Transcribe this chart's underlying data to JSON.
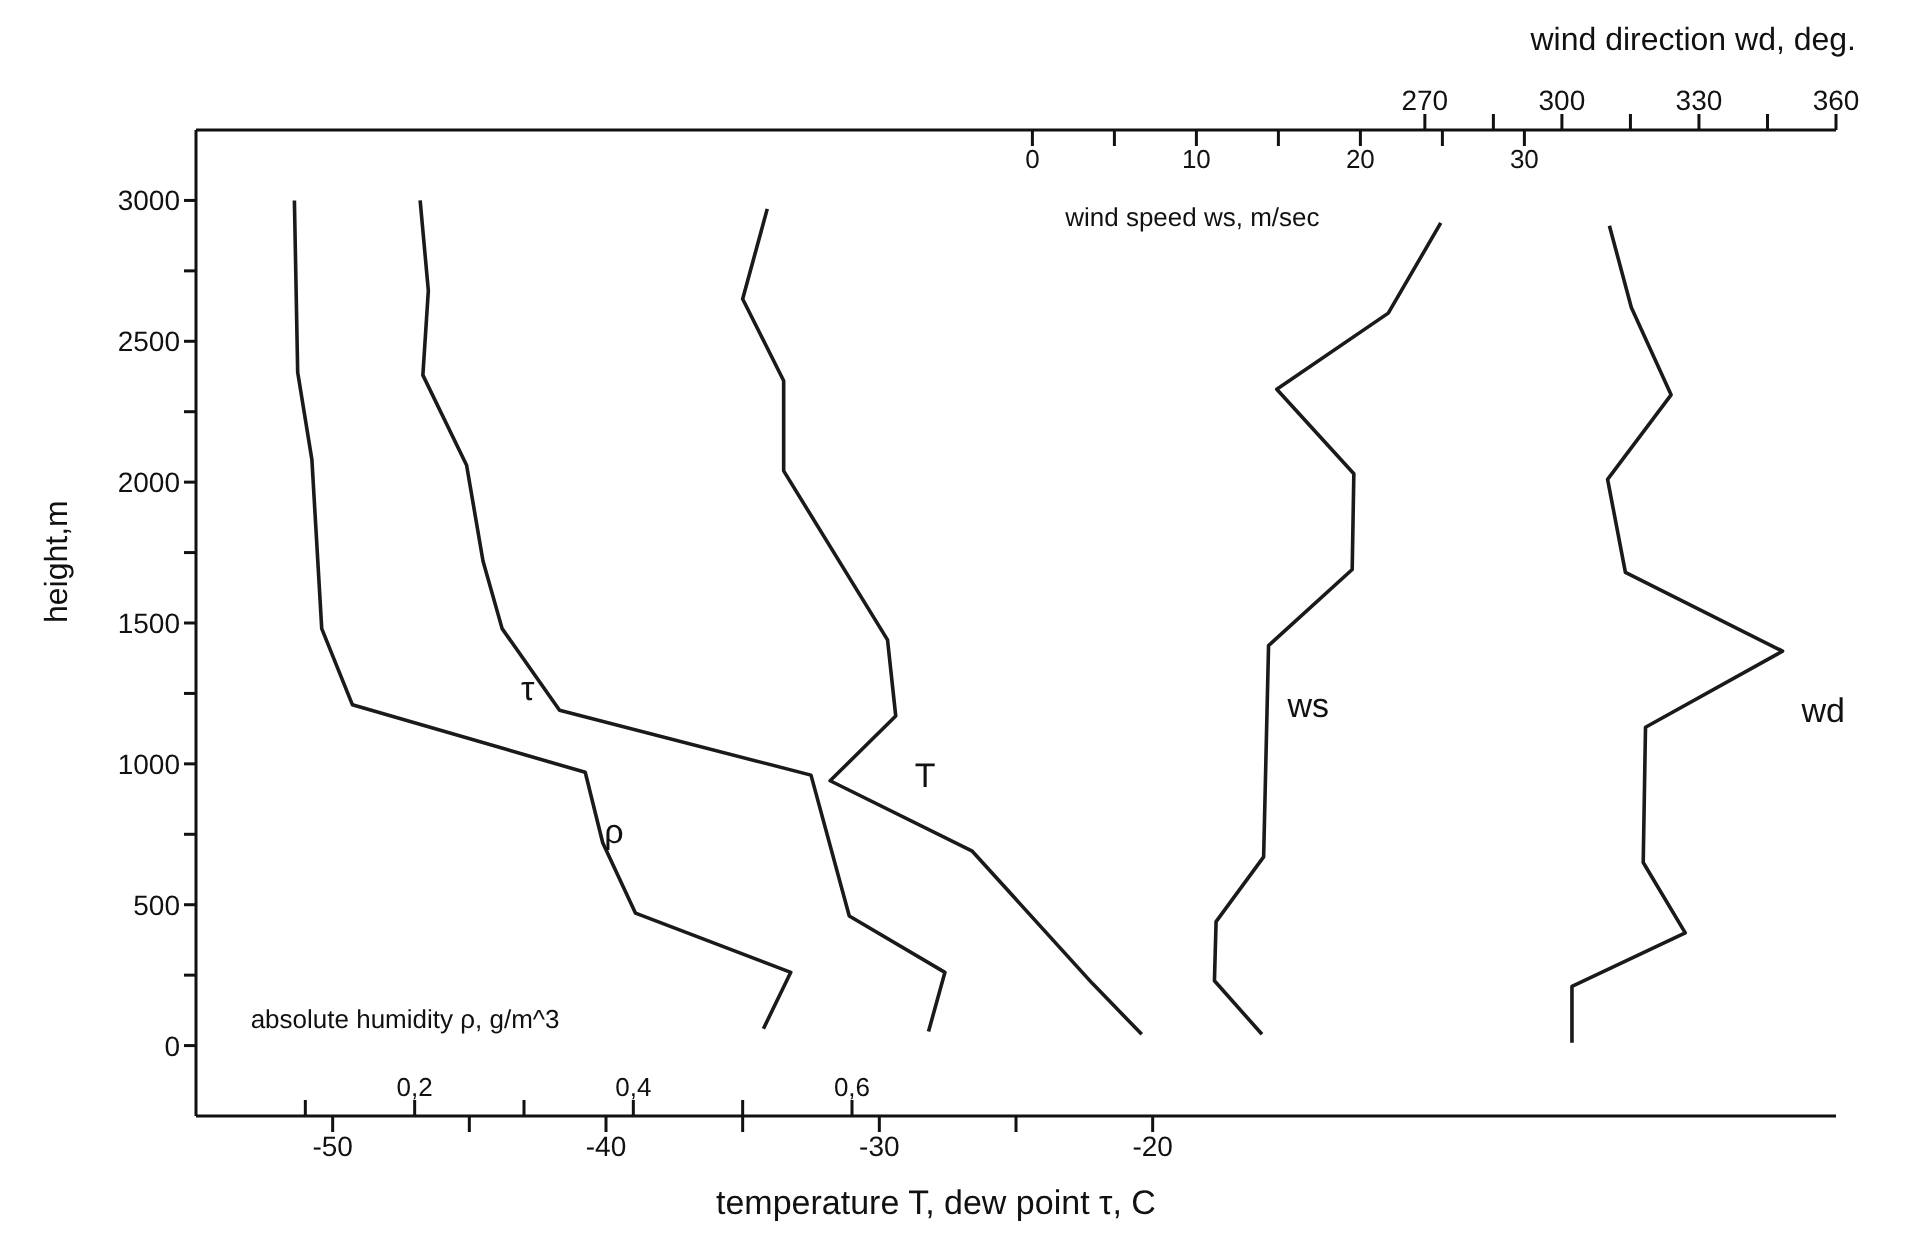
{
  "chart_data": [
    {
      "type": "line",
      "xlabel": "temperature T, dew point τ, C",
      "ylabel": "height,m",
      "x2label": "wind direction wd, deg.",
      "ylim": [
        -250,
        3250
      ],
      "yticks": [
        0,
        {
          "value": 250,
          "label": null
        },
        500,
        {
          "value": 750,
          "label": null
        },
        1000,
        {
          "value": 1250,
          "label": null
        },
        1500,
        {
          "value": 1750,
          "label": null
        },
        2000,
        {
          "value": 2250,
          "label": null
        },
        2500,
        {
          "value": 2750,
          "label": null
        },
        3000
      ],
      "xlim": [
        -55,
        5
      ],
      "xticks": [
        -50,
        {
          "value": -45,
          "label": null
        },
        -40,
        {
          "value": -35,
          "label": null
        },
        -30,
        {
          "value": -25,
          "label": null
        },
        -20
      ],
      "x2lim": [
        1,
        360
      ],
      "x2ticks": [
        270,
        {
          "value": 285,
          "label": null
        },
        300,
        {
          "value": 315,
          "label": null
        },
        330,
        {
          "value": 345,
          "label": null
        },
        360
      ],
      "series": [
        {
          "name": "τ",
          "color": "#1a1a1a",
          "x": [
            -46.8,
            -46.5,
            -46.7,
            -45.1,
            -44.5,
            -43.8,
            -41.7,
            -32.5,
            -31.1,
            -27.6,
            -28.2
          ],
          "values": [
            3000,
            2680,
            2380,
            2060,
            1720,
            1480,
            1190,
            960,
            460,
            260,
            50
          ]
        },
        {
          "name": "T",
          "color": "#1a1a1a",
          "x": [
            -34.1,
            -35,
            -33.5,
            -33.5,
            -29.7,
            -29.4,
            -31.8,
            -26.6,
            -22.2,
            -20.4
          ],
          "values": [
            2970,
            2650,
            2360,
            2040,
            1440,
            1170,
            940,
            690,
            220,
            40
          ]
        },
        {
          "name": "wd",
          "axis": "x2",
          "color": "#1a1a1a",
          "x": [
            310.4,
            315.2,
            323.9,
            310,
            313.9,
            348.3,
            318.3,
            317.8,
            327,
            302.2,
            302.2
          ],
          "values": [
            2910,
            2620,
            2310,
            2010,
            1680,
            1400,
            1130,
            650,
            400,
            210,
            10
          ]
        }
      ]
    },
    {
      "type": "line",
      "xlabel": "absolute humidity ρ, g/m^3",
      "x2label": "wind speed ws, m/sec",
      "tick_labels": "x",
      "ylim": [
        -250,
        3250
      ],
      "xlim": [
        0,
        1.5
      ],
      "xticks": [
        {
          "value": 0.1,
          "label": null
        },
        {
          "value": 0.2,
          "label": "0,2"
        },
        {
          "value": 0.3,
          "label": null
        },
        {
          "value": 0.4,
          "label": "0,4"
        },
        {
          "value": 0.5,
          "label": null
        },
        {
          "value": 0.6,
          "label": "0,6"
        }
      ],
      "x2lim": [
        -51,
        49
      ],
      "x2ticks": [
        0,
        {
          "value": 5,
          "label": null
        },
        10,
        {
          "value": 15,
          "label": null
        },
        20,
        {
          "value": 25,
          "label": null
        },
        30
      ],
      "series": [
        {
          "name": "ρ",
          "color": "#1a1a1a",
          "x": [
            0.09,
            0.093,
            0.106,
            0.115,
            0.143,
            0.356,
            0.372,
            0.402,
            0.544,
            0.519
          ],
          "values": [
            3000,
            2390,
            2080,
            1480,
            1210,
            970,
            720,
            470,
            260,
            60
          ]
        },
        {
          "name": "ws",
          "axis": "x2",
          "color": "#1a1a1a",
          "x": [
            24.9,
            21.7,
            14.9,
            19.6,
            19.5,
            14.4,
            14.1,
            11.2,
            11.1,
            14
          ],
          "values": [
            2920,
            2600,
            2330,
            2030,
            1690,
            1420,
            670,
            440,
            230,
            40
          ]
        }
      ]
    }
  ]
}
